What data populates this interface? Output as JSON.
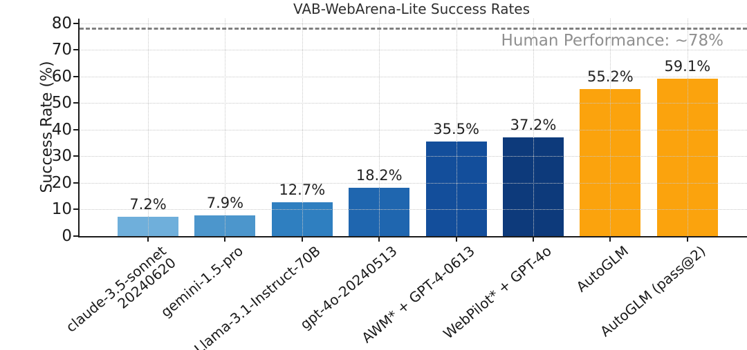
{
  "chart_data": {
    "type": "bar",
    "title": "VAB-WebArena-Lite Success Rates",
    "xlabel": "",
    "ylabel": "Success Rate (%)",
    "ylim": [
      0,
      81.8
    ],
    "yticks": [
      0,
      10,
      20,
      30,
      40,
      50,
      60,
      70,
      80
    ],
    "categories": [
      "claude-3.5-sonnet\n20240620",
      "gemini-1.5-pro",
      "Llama-3.1-Instruct-70B",
      "gpt-4o-20240513",
      "AWM* + GPT-4-0613",
      "WebPilot* + GPT-4o",
      "AutoGLM",
      "AutoGLM (pass@2)"
    ],
    "values": [
      7.2,
      7.9,
      12.7,
      18.2,
      35.5,
      37.2,
      55.2,
      59.1
    ],
    "value_labels": [
      "7.2%",
      "7.9%",
      "12.7%",
      "18.2%",
      "35.5%",
      "37.2%",
      "55.2%",
      "59.1%"
    ],
    "bar_colors": [
      "#6fafdb",
      "#4c96cc",
      "#2f7fc0",
      "#1f66af",
      "#134e9b",
      "#0d3a7b",
      "#fba30d",
      "#fba30d"
    ],
    "reference_line": {
      "value": 78,
      "label": "Human Performance: ~78%",
      "color": "#7f7f7f",
      "style": "dashed"
    },
    "grid": {
      "horizontal": true,
      "vertical": true,
      "style": "dotted",
      "drawn_above_bars": true
    },
    "legend": "none"
  }
}
